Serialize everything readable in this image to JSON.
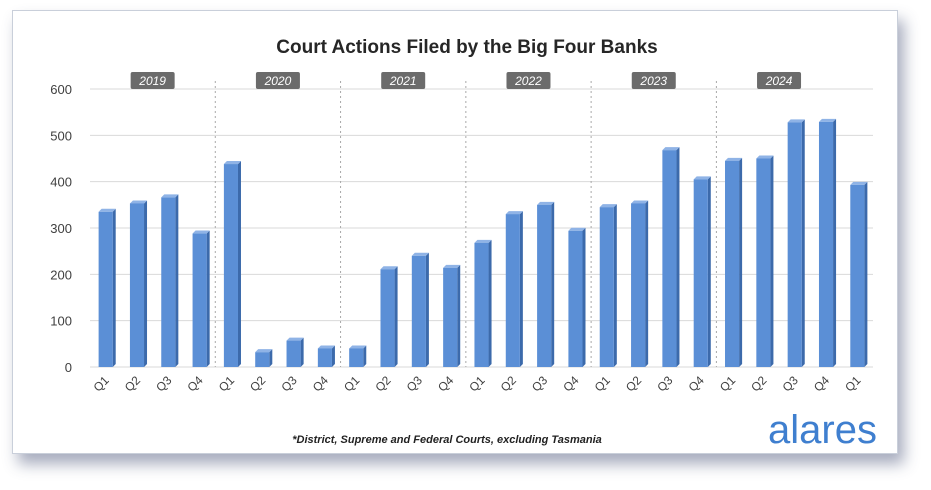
{
  "chart_data": {
    "type": "bar",
    "title": "Court Actions Filed by the Big Four Banks",
    "categories": [
      "Q1",
      "Q2",
      "Q3",
      "Q4",
      "Q1",
      "Q2",
      "Q3",
      "Q4",
      "Q1",
      "Q2",
      "Q3",
      "Q4",
      "Q1",
      "Q2",
      "Q3",
      "Q4",
      "Q1",
      "Q2",
      "Q3",
      "Q4",
      "Q1",
      "Q2",
      "Q3",
      "Q4",
      "Q1"
    ],
    "values": [
      335,
      353,
      366,
      288,
      438,
      32,
      57,
      40,
      40,
      211,
      240,
      214,
      268,
      330,
      350,
      294,
      345,
      353,
      468,
      405,
      445,
      450,
      528,
      529,
      393
    ],
    "ylim": [
      0,
      600
    ],
    "yticks": [
      0,
      100,
      200,
      300,
      400,
      500,
      600
    ],
    "grid": true,
    "groups": [
      {
        "label": "2019",
        "start": 0,
        "count": 4
      },
      {
        "label": "2020",
        "start": 4,
        "count": 4
      },
      {
        "label": "2021",
        "start": 8,
        "count": 4
      },
      {
        "label": "2022",
        "start": 12,
        "count": 4
      },
      {
        "label": "2023",
        "start": 16,
        "count": 4
      },
      {
        "label": "2024",
        "start": 20,
        "count": 4
      }
    ],
    "bar_color": "#5b8fd6",
    "footnote": "*District, Supreme and Federal Courts, excluding Tasmania"
  },
  "brand": {
    "logo_text": "alares",
    "color": "#3f7fcf"
  }
}
